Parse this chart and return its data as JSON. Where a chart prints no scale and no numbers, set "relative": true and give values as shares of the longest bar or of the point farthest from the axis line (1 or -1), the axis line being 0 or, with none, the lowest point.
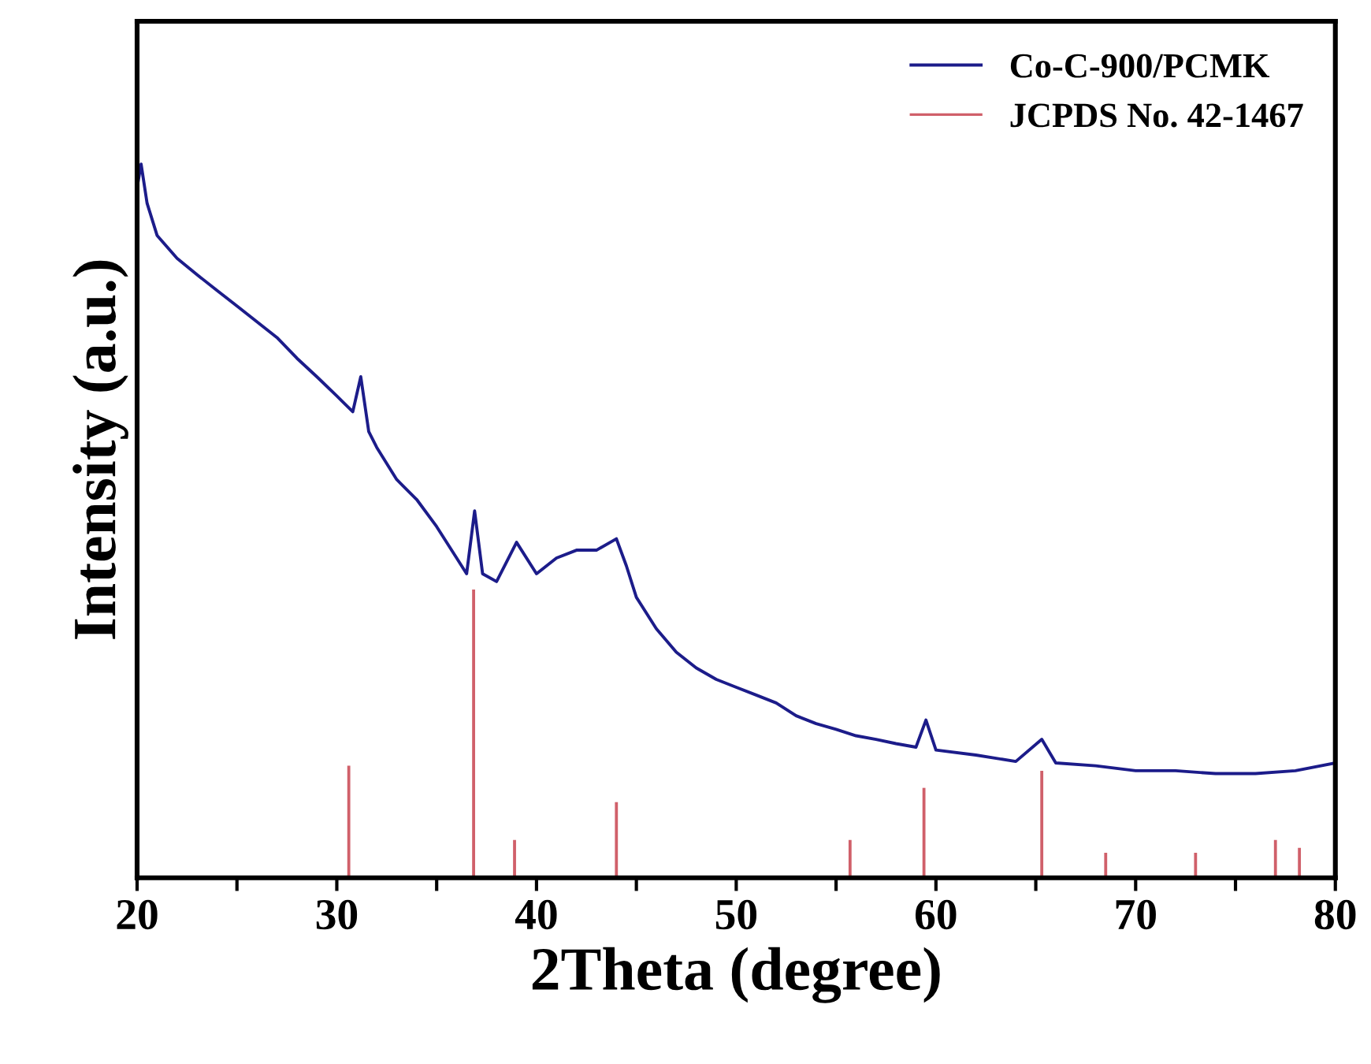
{
  "chart_data": {
    "type": "line",
    "xlabel": "2Theta (degree)",
    "ylabel": "Intensity (a.u.)",
    "relative": true,
    "xlim": [
      20,
      80
    ],
    "xticks": [
      20,
      {
        "value": 25,
        "label": null
      },
      30,
      {
        "value": 35,
        "label": null
      },
      40,
      {
        "value": 45,
        "label": null
      },
      50,
      {
        "value": 55,
        "label": null
      },
      60,
      {
        "value": 65,
        "label": null
      },
      70,
      {
        "value": 75,
        "label": null
      },
      80
    ],
    "legend": "top right",
    "grid": false,
    "series": [
      {
        "name": "Co-C-900/PCMK",
        "color": "#1c1c8a",
        "x": [
          20,
          20.2,
          20.5,
          21,
          22,
          23,
          24,
          25,
          26,
          27,
          28,
          29,
          30,
          30.8,
          31.2,
          31.6,
          32,
          33,
          34,
          35,
          36,
          36.5,
          36.9,
          37.3,
          38,
          39,
          40,
          41,
          42,
          43,
          44,
          44.5,
          45,
          46,
          47,
          48,
          49,
          50,
          51,
          52,
          53,
          54,
          55,
          56,
          57,
          58,
          59,
          59.5,
          60,
          62,
          64,
          65.3,
          66,
          68,
          70,
          72,
          74,
          76,
          78,
          80
        ],
        "values": [
          0.967,
          1.0,
          0.945,
          0.9,
          0.868,
          0.845,
          0.823,
          0.801,
          0.779,
          0.757,
          0.728,
          0.702,
          0.675,
          0.653,
          0.702,
          0.625,
          0.603,
          0.558,
          0.53,
          0.492,
          0.448,
          0.426,
          0.514,
          0.426,
          0.415,
          0.47,
          0.426,
          0.448,
          0.459,
          0.459,
          0.475,
          0.437,
          0.393,
          0.349,
          0.316,
          0.294,
          0.278,
          0.267,
          0.256,
          0.245,
          0.227,
          0.216,
          0.208,
          0.199,
          0.194,
          0.188,
          0.183,
          0.221,
          0.179,
          0.172,
          0.163,
          0.194,
          0.161,
          0.157,
          0.15,
          0.15,
          0.146,
          0.146,
          0.15,
          0.161
        ]
      },
      {
        "name": "JCPDS No. 42-1467",
        "type": "bar",
        "color": "#d0606a",
        "x": [
          30.6,
          36.85,
          38.9,
          44.0,
          55.7,
          59.4,
          65.3,
          68.5,
          73.0,
          77.0,
          78.2
        ],
        "values": [
          0.157,
          0.404,
          0.053,
          0.106,
          0.053,
          0.126,
          0.15,
          0.035,
          0.035,
          0.053,
          0.042
        ]
      }
    ]
  }
}
